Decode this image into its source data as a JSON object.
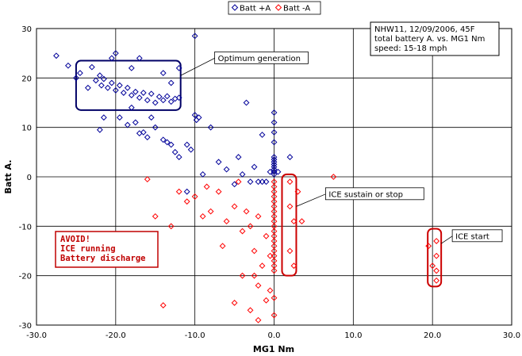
{
  "chart_data": {
    "type": "scatter",
    "xlabel": "MG1 Nm",
    "ylabel": "Batt A.",
    "xlim": [
      -30,
      30
    ],
    "ylim": [
      -30,
      30
    ],
    "x_ticks": [
      -30,
      -20,
      -10,
      0,
      10,
      20,
      30
    ],
    "x_tick_labels": [
      "-30.0",
      "-20.0",
      "-10.0",
      "0.0",
      "10.0",
      "20.0",
      "30.0"
    ],
    "y_ticks": [
      -30,
      -20,
      -10,
      0,
      10,
      20,
      30
    ],
    "y_tick_labels": [
      "-30",
      "-20",
      "-10",
      "0",
      "10",
      "20",
      "30"
    ],
    "grid": true,
    "legend_position": "top-center",
    "note_lines": [
      "NHW11, 12/09/2006, 45F",
      "total battery A. vs. MG1 Nm",
      "speed: 15-18 mph"
    ],
    "series": [
      {
        "name": "Batt +A",
        "color": "#000099",
        "marker": "diamond-open",
        "points": [
          [
            -27.5,
            24.5
          ],
          [
            -26,
            22.5
          ],
          [
            -25,
            20
          ],
          [
            -24.5,
            21
          ],
          [
            -23.5,
            18
          ],
          [
            -23,
            22.2
          ],
          [
            -22.5,
            19.5
          ],
          [
            -22,
            20.5
          ],
          [
            -21.8,
            18.5
          ],
          [
            -21.5,
            19.8
          ],
          [
            -21,
            18
          ],
          [
            -20.5,
            19
          ],
          [
            -20,
            17.5
          ],
          [
            -19.5,
            18.5
          ],
          [
            -19,
            17
          ],
          [
            -18.5,
            18
          ],
          [
            -18,
            16.5
          ],
          [
            -17.5,
            17.2
          ],
          [
            -17,
            16
          ],
          [
            -16.5,
            17
          ],
          [
            -16,
            15.5
          ],
          [
            -15.5,
            16.8
          ],
          [
            -15,
            15
          ],
          [
            -14.5,
            16.2
          ],
          [
            -14,
            15.5
          ],
          [
            -13.5,
            16.3
          ],
          [
            -13,
            15.2
          ],
          [
            -12.5,
            15.8
          ],
          [
            -12,
            16
          ],
          [
            -20,
            25
          ],
          [
            -20.5,
            24
          ],
          [
            -18,
            22
          ],
          [
            -17,
            24
          ],
          [
            -14,
            21
          ],
          [
            -13,
            19
          ],
          [
            -12,
            22
          ],
          [
            -21.5,
            12
          ],
          [
            -22,
            9.5
          ],
          [
            -19.5,
            12
          ],
          [
            -18.5,
            10.5
          ],
          [
            -18,
            14
          ],
          [
            -17.5,
            11
          ],
          [
            -17,
            8.8
          ],
          [
            -16.5,
            9
          ],
          [
            -16,
            8
          ],
          [
            -15,
            10
          ],
          [
            -15.5,
            12
          ],
          [
            -14,
            7.5
          ],
          [
            -13.5,
            7
          ],
          [
            -13,
            6.5
          ],
          [
            -12.5,
            5
          ],
          [
            -12,
            4
          ],
          [
            -11,
            6.5
          ],
          [
            -10.5,
            5.5
          ],
          [
            -10,
            12.5
          ],
          [
            -9.5,
            12
          ],
          [
            -9.8,
            11.5
          ],
          [
            -10,
            28.5
          ],
          [
            -9,
            0.5
          ],
          [
            -7,
            3
          ],
          [
            -6,
            1.5
          ],
          [
            -5,
            -1.5
          ],
          [
            -4.5,
            4
          ],
          [
            -4,
            0.5
          ],
          [
            -3,
            -1
          ],
          [
            -2.5,
            2
          ],
          [
            -2,
            -1
          ],
          [
            -1.5,
            -1
          ],
          [
            -1,
            -1
          ],
          [
            -0.5,
            1
          ],
          [
            0,
            4
          ],
          [
            0,
            3
          ],
          [
            0,
            2
          ],
          [
            0,
            1.5
          ],
          [
            0,
            1
          ],
          [
            0,
            0.5
          ],
          [
            0,
            3.5
          ],
          [
            0,
            2.5
          ],
          [
            0,
            13
          ],
          [
            0,
            11
          ],
          [
            0,
            9
          ],
          [
            0,
            7
          ],
          [
            0.5,
            1
          ],
          [
            2,
            4
          ],
          [
            -3.5,
            15
          ],
          [
            -1.5,
            8.5
          ],
          [
            -8,
            10
          ],
          [
            -11,
            -3
          ]
        ]
      },
      {
        "name": "Batt -A",
        "color": "#ff0000",
        "marker": "diamond-open",
        "points": [
          [
            -16,
            -0.5
          ],
          [
            -14,
            -26
          ],
          [
            -12,
            -3
          ],
          [
            -11,
            -5
          ],
          [
            -10,
            -4
          ],
          [
            -8.5,
            -2
          ],
          [
            -8,
            -7
          ],
          [
            -7,
            -3
          ],
          [
            -6,
            -9
          ],
          [
            -5,
            -6
          ],
          [
            -4.5,
            -1
          ],
          [
            -4,
            -11
          ],
          [
            -3.5,
            -7
          ],
          [
            -3,
            -10
          ],
          [
            -2.5,
            -15
          ],
          [
            -2.5,
            -20
          ],
          [
            -2,
            -8
          ],
          [
            -2,
            -22
          ],
          [
            -1.5,
            -18
          ],
          [
            -1,
            -12
          ],
          [
            -1,
            -25
          ],
          [
            -0.5,
            -16
          ],
          [
            -0.5,
            -23
          ],
          [
            0,
            -1
          ],
          [
            0,
            -2
          ],
          [
            0,
            -3
          ],
          [
            0,
            -4
          ],
          [
            0,
            -5
          ],
          [
            0,
            -6
          ],
          [
            0,
            -7
          ],
          [
            0,
            -8
          ],
          [
            0,
            -9
          ],
          [
            0,
            -10
          ],
          [
            0,
            -11
          ],
          [
            0,
            -12
          ],
          [
            0,
            -13
          ],
          [
            0,
            -14
          ],
          [
            0,
            -15
          ],
          [
            0,
            -16
          ],
          [
            0,
            -17
          ],
          [
            0,
            -18
          ],
          [
            0,
            -19
          ],
          [
            0,
            -24.5
          ],
          [
            0,
            -28
          ],
          [
            2,
            -1
          ],
          [
            2,
            -6
          ],
          [
            2.5,
            -9
          ],
          [
            2,
            -15
          ],
          [
            2.5,
            -18
          ],
          [
            3,
            -3
          ],
          [
            3.5,
            -9
          ],
          [
            7.5,
            0
          ],
          [
            19.5,
            -14
          ],
          [
            20,
            -18
          ],
          [
            20.5,
            -13
          ],
          [
            20.5,
            -16
          ],
          [
            20.5,
            -19
          ],
          [
            20.5,
            -21
          ],
          [
            -15,
            -8
          ],
          [
            -13,
            -10
          ],
          [
            -9,
            -8
          ],
          [
            -6.5,
            -14
          ],
          [
            -5,
            -25.5
          ],
          [
            -4,
            -20
          ],
          [
            -3,
            -27
          ],
          [
            -2,
            -29
          ]
        ]
      }
    ],
    "annotations": [
      {
        "text": "Optimum generation",
        "box": [
          -25,
          13.5,
          -11.8,
          23.5
        ],
        "label_at": [
          -7.5,
          24
        ],
        "arrow_to": [
          -11.8,
          20.5
        ],
        "color": "#000066"
      },
      {
        "text": "ICE sustain or stop",
        "box": [
          1.0,
          -20,
          2.8,
          0.5
        ],
        "label_at": [
          6.5,
          -3.5
        ],
        "arrow_to": [
          2.8,
          -6
        ],
        "color": "#cc0000"
      },
      {
        "text": "ICE start",
        "box": [
          19.4,
          -22.2,
          21.1,
          -10.5
        ],
        "label_at": [
          22.5,
          -12
        ],
        "arrow_to": [
          21.1,
          -13.5
        ],
        "color": "#cc0000"
      }
    ],
    "avoid_lines": [
      "AVOID!",
      "ICE running",
      "Battery discharge"
    ]
  }
}
